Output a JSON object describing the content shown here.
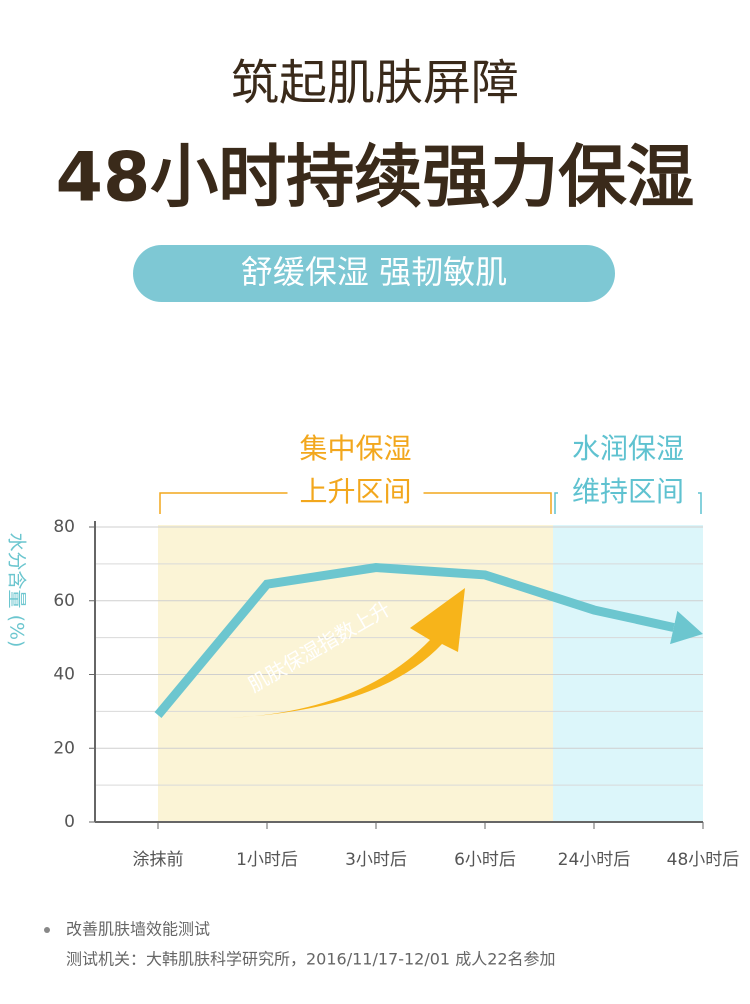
{
  "header": {
    "title": "筑起肌肤屏障",
    "headline": "48小时持续强力保湿",
    "badge": "舒缓保湿 强韧敏肌"
  },
  "chart_data": {
    "type": "line",
    "y_label": "水分含量 (%)",
    "categories": [
      "涂抹前",
      "1小时后",
      "3小时后",
      "6小时后",
      "24小时后",
      "48小时后"
    ],
    "series": [
      {
        "color": "#6cc6cf",
        "values": [
          29,
          64.5,
          69,
          67,
          57.5,
          51
        ]
      }
    ],
    "ylim": [
      0,
      80
    ],
    "yticks": [
      0,
      20,
      40,
      60,
      80
    ],
    "y_minor_ticks": [
      10,
      30,
      50,
      70
    ],
    "grid": true,
    "regions": [
      {
        "label": [
          "集中保湿",
          "上升区间"
        ],
        "color": "#fbf4d6",
        "text_color": "#f2a71d"
      },
      {
        "label": [
          "水润保湿",
          "维持区间"
        ],
        "color": "#dcf6fa",
        "text_color": "#5fc2d0"
      }
    ],
    "annotation": "肌肤保湿指数上升"
  },
  "footnote": {
    "title": "改善肌肤墙效能测试",
    "detail": "测试机关：大韩肌肤科学研究所，2016/11/17-12/01 成人22名参加"
  }
}
